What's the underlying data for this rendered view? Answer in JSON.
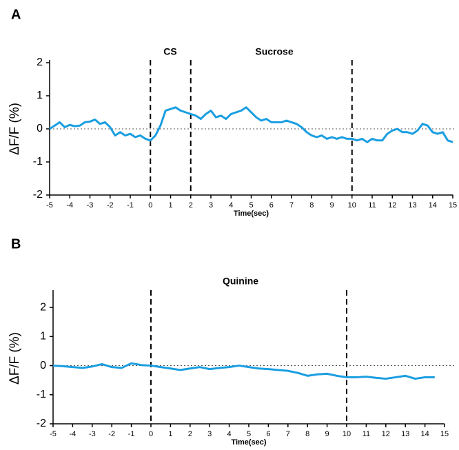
{
  "chart_data": [
    {
      "type": "line",
      "panel_label": "A",
      "xlabel": "Time(sec)",
      "ylabel": "ΔF/F (%)",
      "annotations": [
        "CS",
        "Sucrose"
      ],
      "xlim": [
        -5,
        15
      ],
      "ylim": [
        -2,
        2
      ],
      "xticks": [
        -5,
        -4,
        -3,
        -2,
        -1,
        0,
        1,
        2,
        3,
        4,
        5,
        6,
        7,
        8,
        9,
        10,
        11,
        12,
        13,
        14,
        15
      ],
      "yticks": [
        -2,
        -1,
        0,
        1,
        2
      ],
      "vlines": [
        0,
        2,
        10
      ],
      "hline": 0,
      "color": "#1a9ee0",
      "x": [
        -5,
        -4.75,
        -4.5,
        -4.25,
        -4,
        -3.75,
        -3.5,
        -3.25,
        -3,
        -2.75,
        -2.5,
        -2.25,
        -2,
        -1.75,
        -1.5,
        -1.25,
        -1,
        -0.75,
        -0.5,
        -0.25,
        0,
        0.25,
        0.5,
        0.75,
        1,
        1.25,
        1.5,
        1.75,
        2,
        2.25,
        2.5,
        2.75,
        3,
        3.25,
        3.5,
        3.75,
        4,
        4.25,
        4.5,
        4.75,
        5,
        5.25,
        5.5,
        5.75,
        6,
        6.25,
        6.5,
        6.75,
        7,
        7.25,
        7.5,
        7.75,
        8,
        8.25,
        8.5,
        8.75,
        9,
        9.25,
        9.5,
        9.75,
        10,
        10.25,
        10.5,
        10.75,
        11,
        11.25,
        11.5,
        11.75,
        12,
        12.25,
        12.5,
        12.75,
        13,
        13.25,
        13.5,
        13.75,
        14,
        14.25,
        14.5,
        14.75,
        15
      ],
      "values": [
        0,
        0.1,
        0.2,
        0.05,
        0.12,
        0.08,
        0.1,
        0.2,
        0.22,
        0.28,
        0.15,
        0.2,
        0.05,
        -0.2,
        -0.1,
        -0.2,
        -0.15,
        -0.25,
        -0.2,
        -0.3,
        -0.35,
        -0.2,
        0.1,
        0.55,
        0.6,
        0.65,
        0.55,
        0.5,
        0.45,
        0.4,
        0.3,
        0.45,
        0.55,
        0.35,
        0.4,
        0.3,
        0.45,
        0.5,
        0.55,
        0.65,
        0.5,
        0.35,
        0.25,
        0.3,
        0.2,
        0.2,
        0.2,
        0.25,
        0.2,
        0.15,
        0.05,
        -0.1,
        -0.2,
        -0.25,
        -0.2,
        -0.3,
        -0.25,
        -0.3,
        -0.25,
        -0.3,
        -0.3,
        -0.35,
        -0.3,
        -0.4,
        -0.3,
        -0.35,
        -0.35,
        -0.15,
        -0.05,
        0,
        -0.1,
        -0.1,
        -0.15,
        -0.05,
        0.15,
        0.1,
        -0.1,
        -0.15,
        -0.1,
        -0.35,
        -0.4
      ]
    },
    {
      "type": "line",
      "panel_label": "B",
      "xlabel": "Time(sec)",
      "ylabel": "ΔF/F (%)",
      "annotations": [
        "Quinine"
      ],
      "xlim": [
        -5,
        15
      ],
      "ylim": [
        -2,
        2.5
      ],
      "xticks": [
        -5,
        -4,
        -3,
        -2,
        -1,
        0,
        1,
        2,
        3,
        4,
        5,
        6,
        7,
        8,
        9,
        10,
        11,
        12,
        13,
        14,
        15
      ],
      "yticks": [
        -2,
        -1,
        0,
        1,
        2
      ],
      "vlines": [
        0,
        10
      ],
      "hline": 0,
      "color": "#1a9ee0",
      "x": [
        -5,
        -4.5,
        -4,
        -3.5,
        -3,
        -2.5,
        -2,
        -1.5,
        -1,
        -0.5,
        0,
        0.5,
        1,
        1.5,
        2,
        2.5,
        3,
        3.5,
        4,
        4.5,
        5,
        5.5,
        6,
        6.5,
        7,
        7.5,
        8,
        8.5,
        9,
        9.5,
        10,
        10.5,
        11,
        11.5,
        12,
        12.5,
        13,
        13.5,
        14,
        14.5
      ],
      "values": [
        0,
        -0.02,
        -0.05,
        -0.08,
        -0.03,
        0.05,
        -0.05,
        -0.08,
        0.08,
        0.02,
        0,
        -0.05,
        -0.1,
        -0.15,
        -0.1,
        -0.05,
        -0.12,
        -0.08,
        -0.05,
        0,
        -0.05,
        -0.1,
        -0.12,
        -0.15,
        -0.18,
        -0.25,
        -0.35,
        -0.3,
        -0.28,
        -0.35,
        -0.4,
        -0.4,
        -0.38,
        -0.42,
        -0.45,
        -0.4,
        -0.35,
        -0.45,
        -0.4,
        -0.4
      ]
    }
  ]
}
